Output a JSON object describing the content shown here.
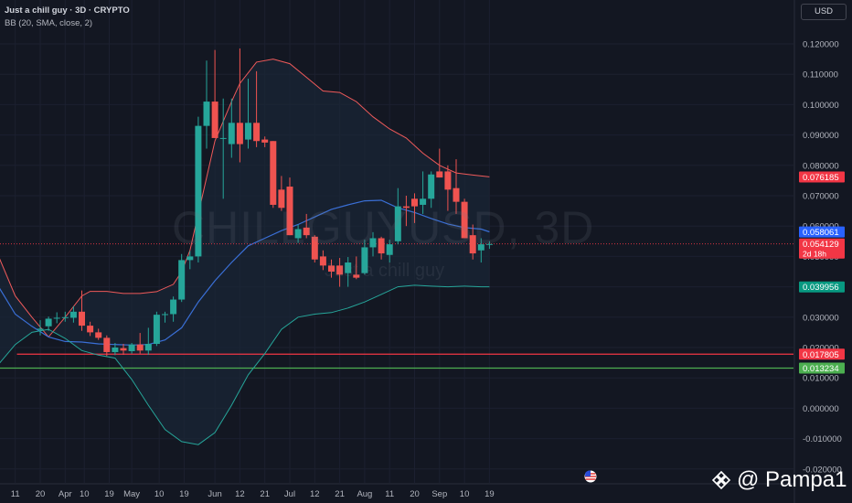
{
  "header": {
    "title": "Just a chill guy · 3D · CRYPTO",
    "indicator": "BB (20, SMA, close, 2)",
    "currency": "USD"
  },
  "watermark": {
    "symbol": "CHILLGUYUSD, 3D",
    "description": "Just a chill guy"
  },
  "brand": {
    "text": "@ Pampa1",
    "icon": "binance-diamond-icon"
  },
  "flag_icon": "us-flag-icon",
  "colors": {
    "background": "#131722",
    "grid": "#1c2030",
    "bull": "#26a69a",
    "bear": "#ef5350",
    "bb_upper": "#f05a5a",
    "bb_basis": "#3a6fd6",
    "bb_lower": "#26a69a",
    "bb_fill": "#1a2535",
    "support_red": "#f23645",
    "support_green": "#4caf50"
  },
  "chart_data": {
    "type": "candlestick",
    "title": "Just a chill guy · 3D · CRYPTO",
    "indicator": "BB (20, SMA, close, 2)",
    "ylim": [
      -0.024,
      0.126
    ],
    "y_ticks": [
      "0.120000",
      "0.110000",
      "0.100000",
      "0.090000",
      "0.080000",
      "0.070000",
      "0.060000",
      "0.050000",
      "0.040000",
      "0.030000",
      "0.020000",
      "0.010000",
      "0.000000",
      "-0.010000",
      "-0.020000"
    ],
    "y_tick_values": [
      0.12,
      0.11,
      0.1,
      0.09,
      0.08,
      0.07,
      0.06,
      0.05,
      0.04,
      0.03,
      0.02,
      0.01,
      0.0,
      -0.01,
      -0.02
    ],
    "x_tick_labels": [
      "11",
      "20",
      "Apr",
      "10",
      "19",
      "May",
      "10",
      "19",
      "Jun",
      "12",
      "21",
      "Jul",
      "12",
      "21",
      "Aug",
      "11",
      "20",
      "Sep",
      "10",
      "19"
    ],
    "x_tick_index": [
      -3,
      0,
      3,
      5.3,
      8.3,
      11,
      14.3,
      17.3,
      21,
      24,
      27,
      30,
      33,
      36,
      39,
      42,
      45,
      48,
      51,
      54
    ],
    "candles": [
      {
        "o": 0.0258,
        "h": 0.029,
        "l": 0.024,
        "c": 0.0262
      },
      {
        "o": 0.027,
        "h": 0.0302,
        "l": 0.0255,
        "c": 0.0295
      },
      {
        "o": 0.0296,
        "h": 0.0316,
        "l": 0.028,
        "c": 0.0298
      },
      {
        "o": 0.0297,
        "h": 0.0318,
        "l": 0.0285,
        "c": 0.03
      },
      {
        "o": 0.0298,
        "h": 0.0336,
        "l": 0.0282,
        "c": 0.0318
      },
      {
        "o": 0.0318,
        "h": 0.0388,
        "l": 0.0255,
        "c": 0.0272
      },
      {
        "o": 0.0272,
        "h": 0.0285,
        "l": 0.0238,
        "c": 0.025
      },
      {
        "o": 0.025,
        "h": 0.0262,
        "l": 0.0225,
        "c": 0.0232
      },
      {
        "o": 0.0232,
        "h": 0.024,
        "l": 0.0172,
        "c": 0.0185
      },
      {
        "o": 0.0185,
        "h": 0.0215,
        "l": 0.0175,
        "c": 0.02
      },
      {
        "o": 0.0198,
        "h": 0.0212,
        "l": 0.0176,
        "c": 0.019
      },
      {
        "o": 0.0188,
        "h": 0.0215,
        "l": 0.018,
        "c": 0.021
      },
      {
        "o": 0.021,
        "h": 0.0248,
        "l": 0.018,
        "c": 0.019
      },
      {
        "o": 0.019,
        "h": 0.0265,
        "l": 0.0176,
        "c": 0.0212
      },
      {
        "o": 0.0212,
        "h": 0.0318,
        "l": 0.0205,
        "c": 0.0308
      },
      {
        "o": 0.0308,
        "h": 0.0318,
        "l": 0.0282,
        "c": 0.031
      },
      {
        "o": 0.031,
        "h": 0.0368,
        "l": 0.0285,
        "c": 0.0358
      },
      {
        "o": 0.0358,
        "h": 0.0508,
        "l": 0.035,
        "c": 0.0488
      },
      {
        "o": 0.0488,
        "h": 0.0518,
        "l": 0.0458,
        "c": 0.05
      },
      {
        "o": 0.05,
        "h": 0.096,
        "l": 0.048,
        "c": 0.093
      },
      {
        "o": 0.093,
        "h": 0.1145,
        "l": 0.0855,
        "c": 0.101
      },
      {
        "o": 0.101,
        "h": 0.118,
        "l": 0.089,
        "c": 0.089
      },
      {
        "o": 0.089,
        "h": 0.102,
        "l": 0.069,
        "c": 0.089
      },
      {
        "o": 0.087,
        "h": 0.102,
        "l": 0.0825,
        "c": 0.094
      },
      {
        "o": 0.094,
        "h": 0.1185,
        "l": 0.081,
        "c": 0.087
      },
      {
        "o": 0.0885,
        "h": 0.1085,
        "l": 0.0855,
        "c": 0.094
      },
      {
        "o": 0.094,
        "h": 0.111,
        "l": 0.086,
        "c": 0.088
      },
      {
        "o": 0.0885,
        "h": 0.0895,
        "l": 0.086,
        "c": 0.0875
      },
      {
        "o": 0.088,
        "h": 0.088,
        "l": 0.066,
        "c": 0.067
      },
      {
        "o": 0.072,
        "h": 0.0765,
        "l": 0.065,
        "c": 0.066
      },
      {
        "o": 0.073,
        "h": 0.076,
        "l": 0.057,
        "c": 0.057
      },
      {
        "o": 0.056,
        "h": 0.0605,
        "l": 0.0545,
        "c": 0.059
      },
      {
        "o": 0.0595,
        "h": 0.064,
        "l": 0.056,
        "c": 0.057
      },
      {
        "o": 0.0565,
        "h": 0.057,
        "l": 0.048,
        "c": 0.049
      },
      {
        "o": 0.05,
        "h": 0.052,
        "l": 0.0455,
        "c": 0.047
      },
      {
        "o": 0.047,
        "h": 0.049,
        "l": 0.043,
        "c": 0.045
      },
      {
        "o": 0.047,
        "h": 0.0495,
        "l": 0.04,
        "c": 0.044
      },
      {
        "o": 0.0445,
        "h": 0.0498,
        "l": 0.04,
        "c": 0.048
      },
      {
        "o": 0.044,
        "h": 0.05,
        "l": 0.0425,
        "c": 0.043
      },
      {
        "o": 0.0445,
        "h": 0.0555,
        "l": 0.044,
        "c": 0.053
      },
      {
        "o": 0.053,
        "h": 0.058,
        "l": 0.05,
        "c": 0.056
      },
      {
        "o": 0.056,
        "h": 0.0565,
        "l": 0.049,
        "c": 0.051
      },
      {
        "o": 0.0505,
        "h": 0.0555,
        "l": 0.048,
        "c": 0.054
      },
      {
        "o": 0.055,
        "h": 0.0725,
        "l": 0.054,
        "c": 0.0665
      },
      {
        "o": 0.0665,
        "h": 0.07,
        "l": 0.06,
        "c": 0.066
      },
      {
        "o": 0.069,
        "h": 0.0708,
        "l": 0.061,
        "c": 0.0665
      },
      {
        "o": 0.067,
        "h": 0.078,
        "l": 0.064,
        "c": 0.069
      },
      {
        "o": 0.069,
        "h": 0.078,
        "l": 0.066,
        "c": 0.077
      },
      {
        "o": 0.078,
        "h": 0.0855,
        "l": 0.076,
        "c": 0.076
      },
      {
        "o": 0.078,
        "h": 0.08,
        "l": 0.065,
        "c": 0.072
      },
      {
        "o": 0.0725,
        "h": 0.082,
        "l": 0.064,
        "c": 0.068
      },
      {
        "o": 0.068,
        "h": 0.069,
        "l": 0.056,
        "c": 0.056
      },
      {
        "o": 0.057,
        "h": 0.0605,
        "l": 0.049,
        "c": 0.051
      },
      {
        "o": 0.052,
        "h": 0.056,
        "l": 0.048,
        "c": 0.054
      },
      {
        "o": 0.054,
        "h": 0.055,
        "l": 0.0525,
        "c": 0.0541
      }
    ],
    "bollinger": {
      "upper": [
        [
          -9,
          0.062
        ],
        [
          -7,
          0.059
        ],
        [
          -5,
          0.05
        ],
        [
          -3,
          0.037
        ],
        [
          -1,
          0.03
        ],
        [
          1,
          0.0235
        ],
        [
          3,
          0.03
        ],
        [
          5,
          0.037
        ],
        [
          6,
          0.0385
        ],
        [
          8,
          0.0385
        ],
        [
          10,
          0.0378
        ],
        [
          12,
          0.0378
        ],
        [
          14,
          0.0384
        ],
        [
          16,
          0.0408
        ],
        [
          17,
          0.045
        ],
        [
          18,
          0.052
        ],
        [
          19,
          0.064
        ],
        [
          20,
          0.076
        ],
        [
          21,
          0.088
        ],
        [
          23,
          0.101
        ],
        [
          24,
          0.107
        ],
        [
          26,
          0.114
        ],
        [
          28,
          0.115
        ],
        [
          30,
          0.1135
        ],
        [
          32,
          0.109
        ],
        [
          34,
          0.1045
        ],
        [
          36,
          0.104
        ],
        [
          38,
          0.101
        ],
        [
          40,
          0.096
        ],
        [
          42,
          0.092
        ],
        [
          44,
          0.089
        ],
        [
          46,
          0.084
        ],
        [
          48,
          0.08
        ],
        [
          50,
          0.0775
        ],
        [
          52,
          0.0768
        ],
        [
          54,
          0.0762
        ]
      ],
      "basis": [
        [
          -9,
          0.064
        ],
        [
          -7,
          0.049
        ],
        [
          -5,
          0.04
        ],
        [
          -3,
          0.031
        ],
        [
          -1,
          0.027
        ],
        [
          1,
          0.0235
        ],
        [
          3,
          0.022
        ],
        [
          5,
          0.0218
        ],
        [
          7,
          0.0212
        ],
        [
          9,
          0.021
        ],
        [
          11,
          0.0208
        ],
        [
          13,
          0.021
        ],
        [
          15,
          0.0225
        ],
        [
          17,
          0.0265
        ],
        [
          19,
          0.035
        ],
        [
          21,
          0.042
        ],
        [
          23,
          0.048
        ],
        [
          25,
          0.0535
        ],
        [
          27,
          0.056
        ],
        [
          29,
          0.0585
        ],
        [
          31,
          0.0605
        ],
        [
          33,
          0.063
        ],
        [
          35,
          0.0655
        ],
        [
          37,
          0.067
        ],
        [
          39,
          0.0683
        ],
        [
          41,
          0.0685
        ],
        [
          43,
          0.066
        ],
        [
          45,
          0.0645
        ],
        [
          47,
          0.0625
        ],
        [
          49,
          0.0607
        ],
        [
          51,
          0.0595
        ],
        [
          53,
          0.059
        ],
        [
          54,
          0.0581
        ]
      ],
      "lower": [
        [
          -9,
          0.007
        ],
        [
          -7,
          0.011
        ],
        [
          -5,
          0.0145
        ],
        [
          -3,
          0.021
        ],
        [
          -1,
          0.025
        ],
        [
          1,
          0.026
        ],
        [
          3,
          0.023
        ],
        [
          5,
          0.019
        ],
        [
          7,
          0.0175
        ],
        [
          9,
          0.0165
        ],
        [
          11,
          0.0095
        ],
        [
          13,
          0.001
        ],
        [
          15,
          -0.007
        ],
        [
          17,
          -0.011
        ],
        [
          19,
          -0.012
        ],
        [
          21,
          -0.008
        ],
        [
          23,
          0.001
        ],
        [
          25,
          0.011
        ],
        [
          27,
          0.018
        ],
        [
          29,
          0.026
        ],
        [
          31,
          0.03
        ],
        [
          33,
          0.031
        ],
        [
          35,
          0.0315
        ],
        [
          37,
          0.033
        ],
        [
          39,
          0.035
        ],
        [
          41,
          0.0375
        ],
        [
          43,
          0.04
        ],
        [
          45,
          0.0405
        ],
        [
          47,
          0.0402
        ],
        [
          49,
          0.04
        ],
        [
          51,
          0.0402
        ],
        [
          53,
          0.04
        ],
        [
          54,
          0.04
        ]
      ]
    },
    "horizontal_lines": [
      {
        "value": 0.017805,
        "label": "0.017805",
        "color": "#f23645",
        "start_index": -2.8
      },
      {
        "value": 0.013234,
        "label": "0.013234",
        "color": "#4caf50",
        "start_index": -9
      }
    ],
    "price_labels": [
      {
        "value": 0.076185,
        "text": "0.076185",
        "color": "#f23645"
      },
      {
        "value": 0.058061,
        "text": "0.058061",
        "color": "#2962ff"
      },
      {
        "value": 0.054129,
        "text": "0.054129",
        "color": "#f23645",
        "sub": "2d 18h"
      },
      {
        "value": 0.039956,
        "text": "0.039956",
        "color": "#089981"
      }
    ],
    "last_price": 0.054129
  }
}
